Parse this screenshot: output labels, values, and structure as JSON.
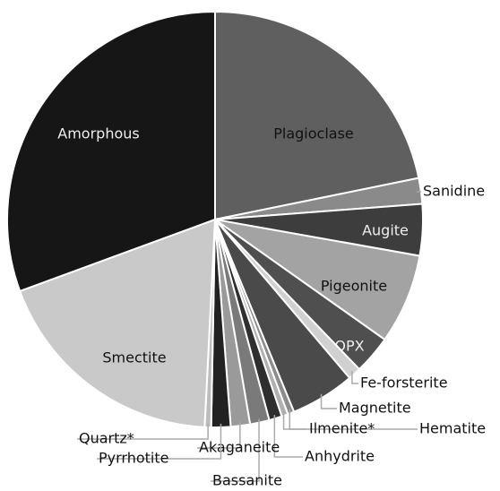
{
  "chart_data": {
    "type": "pie",
    "categories": [
      "Plagioclase",
      "Sanidine",
      "Augite",
      "Pigeonite",
      "OPX",
      "Fe-forsterite",
      "Magnetite",
      "Hematite",
      "Ilmenite*",
      "Anhydrite",
      "Bassanite",
      "Akaganeite",
      "Pyrrhotite",
      "Quartz*",
      "Smectite",
      "Amorphous"
    ],
    "values": [
      21.8,
      2,
      4,
      7,
      3,
      1,
      5,
      0.5,
      0.5,
      1,
      1.5,
      1.5,
      1.5,
      0.5,
      18.6,
      30.6
    ],
    "colors": [
      "#5f5f5f",
      "#8a8a8a",
      "#3d3d3d",
      "#a3a3a3",
      "#4f4f4f",
      "#d0d0d0",
      "#4a4a4a",
      "#8c8c8c",
      "#b0b0b0",
      "#2e2e2e",
      "#7a7a7a",
      "#9a9a9a",
      "#222222",
      "#bdbdbd",
      "#c9c9c9",
      "#161616"
    ]
  }
}
